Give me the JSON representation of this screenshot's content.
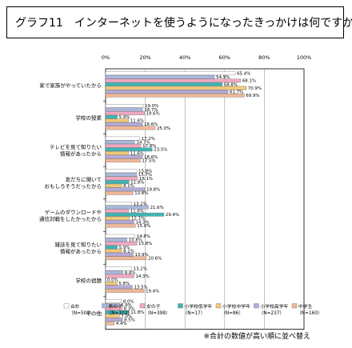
{
  "title": "グラフ11　インターネットを使うようになったきっかけは何ですか？",
  "footnote": "※合計の数値が高い順に並べ替え",
  "chart_data": {
    "type": "bar",
    "orientation": "horizontal",
    "title": "グラフ11　インターネットを使うようになったきっかけは何ですか？",
    "xlim": [
      0,
      100
    ],
    "x_ticks": [
      "0%",
      "20%",
      "40%",
      "60%",
      "80%",
      "100%"
    ],
    "grid": true,
    "legend_position": "bottom",
    "categories": [
      [
        "家で家族がやっていたから"
      ],
      [
        "学校の授業"
      ],
      [
        "テレビを見て知りたい",
        "情報があったから"
      ],
      [
        "友だちに聞いて",
        "おもしろそうだったから"
      ],
      [
        "ゲームのダウンロードや",
        "通信対戦をしたかったから"
      ],
      [
        "雑誌を見て知りたい",
        "情報があったから"
      ],
      [
        "学校の宿題"
      ],
      [
        "その他"
      ]
    ],
    "series": [
      {
        "name": "合計",
        "sub": "（N=500）",
        "color": "#ffffff",
        "values": [
          65.4,
          19.0,
          17.2,
          15.8,
          13.2,
          14.8,
          13.2,
          8.0
        ]
      },
      {
        "name": "男の子",
        "sub": "（N=102）",
        "color": "#aab8dc",
        "values": [
          54.9,
          18.7,
          14.7,
          15.7,
          21.6,
          10.8,
          8.8,
          6.9
        ]
      },
      {
        "name": "女の子",
        "sub": "（N=398）",
        "color": "#f0a8c0",
        "values": [
          68.1,
          19.6,
          17.8,
          16.1,
          11.6,
          15.8,
          14.3,
          8.3
        ]
      },
      {
        "name": "小学校低学年",
        "sub": "（N=17）",
        "color": "#40b4b4",
        "values": [
          58.8,
          5.9,
          23.5,
          11.8,
          29.4,
          5.9,
          0.0,
          11.8
        ]
      },
      {
        "name": "小学校中学年",
        "sub": "（N=86）",
        "color": "#f0c878",
        "values": [
          70.9,
          11.6,
          11.6,
          8.1,
          12.1,
          8.1,
          5.8,
          7.0
        ]
      },
      {
        "name": "小学校高学年",
        "sub": "（N=237）",
        "color": "#b4aad8",
        "values": [
          61.7,
          18.6,
          18.6,
          19.8,
          14.3,
          13.9,
          13.5,
          8.5
        ]
      },
      {
        "name": "中学生",
        "sub": "（N=160）",
        "color": "#f0b898",
        "values": [
          69.9,
          25.0,
          17.5,
          13.8,
          15.0,
          20.6,
          19.4,
          4.4
        ]
      }
    ],
    "value_labels": [
      [
        "65.4%",
        "54.9%",
        "68.1%",
        "58.8%",
        "70.9%",
        "61.7%",
        "69.9%"
      ],
      [
        "19.0%",
        "18.7%",
        "19.6%",
        "5.9%",
        "11.6%",
        "18.6%",
        "25.0%"
      ],
      [
        "17.2%",
        "14.7%",
        "17.8%",
        "23.5%",
        "11.6%",
        "18.6%",
        "17.5%"
      ],
      [
        "15.8%",
        "15.7%",
        "16.1%",
        "11.8%",
        "8.1%",
        "19.8%",
        "13.8%"
      ],
      [
        "13.2%",
        "21.6%",
        "11.6%",
        "29.4%",
        "12.1%",
        "14.3%",
        "15.0%"
      ],
      [
        "14.8%",
        "10.8%",
        "15.8%",
        "5.9%",
        "8.1%",
        "13.9%",
        "20.6%"
      ],
      [
        "13.2%",
        "8.8%",
        "14.3%",
        "0.0%",
        "5.8%",
        "13.5%",
        "19.4%"
      ],
      [
        "8.0%",
        "6.9%",
        "8.3%",
        "11.8%",
        "7.0%",
        "8.5%",
        "4.4%"
      ]
    ]
  }
}
